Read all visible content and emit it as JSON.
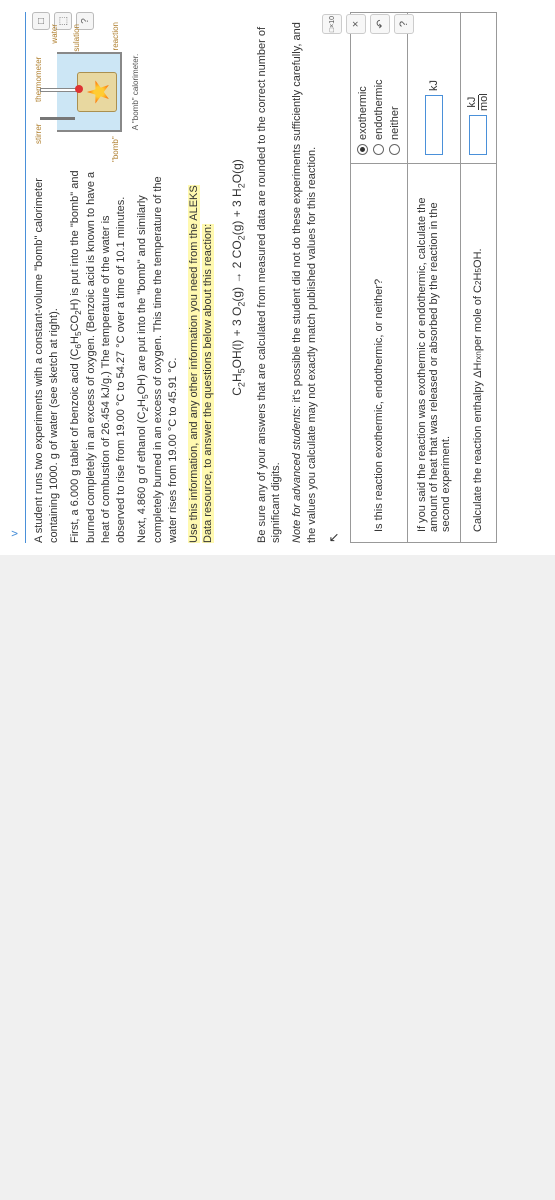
{
  "tab": {
    "arrow": "˅"
  },
  "para1_a": "A student runs two experiments with a constant-volume \"bomb\" calorimeter containing 1000. g of water (see sketch at right).",
  "para2_a": "First, a 6.000 g tablet of benzoic acid (C",
  "para2_b": "H",
  "para2_c": "CO",
  "para2_d": "H) is put into the \"bomb\" and burned completely in an excess of oxygen. (Benzoic acid is known to have a heat of combustion of 26.454 kJ/g.) The temperature of the water is observed to rise from 19.00 °C to 54.27 °C over a time of 10.1 minutes.",
  "para3_a": "Next, 4.860 g of ethanol (C",
  "para3_b": "H",
  "para3_c": "OH) are put into the \"bomb\" and similarly completely burned in an excess of oxygen. This time the temperature of the water rises from 19.00 °C to 45.91 °C.",
  "para4": "Use this information, and any other information you need from the ALEKS Data resource, to answer the questions below about this reaction:",
  "eq_a": "C",
  "eq_b": "H",
  "eq_c": "OH(l) + 3 O",
  "eq_d": "(g) → 2 CO",
  "eq_e": "(g) + 3 H",
  "eq_f": "O(g)",
  "para5": "Be sure any of your answers that are calculated from measured data are rounded to the correct number of significant digits.",
  "para6_a": "Note for advanced students:",
  "para6_b": " it's possible the student did not do these experiments sufficiently carefully, and the values you calculate may not exactly match published values for this reaction.",
  "diagram": {
    "stirrer": "stirrer",
    "thermometer": "thermometer",
    "water": "water",
    "insulation": "insulation",
    "bomb": "\"bomb\"",
    "chem": "chemical reaction",
    "caption": "A \"bomb\" calorimeter."
  },
  "icons": {
    "a": "□",
    "b": "⬚",
    "c": "?"
  },
  "q1": {
    "prompt": "Is this reaction exothermic, endothermic, or neither?",
    "opt1": "exothermic",
    "opt2": "endothermic",
    "opt3": "neither"
  },
  "q2": {
    "prompt_a": "If you said the reaction was exothermic or endothermic, calculate the amount of heat that was released or absorbed by the reaction in the second experiment.",
    "unit": "kJ"
  },
  "q3": {
    "prompt_a": "Calculate the reaction enthalpy ΔH",
    "prompt_b": " per mole of C",
    "prompt_c": "H",
    "prompt_d": "OH.",
    "unit_top": "kJ",
    "unit_bot": "mol"
  },
  "tools": {
    "sci": "□×10",
    "x": "×",
    "undo": "↶",
    "help": "?"
  },
  "colors": {
    "link": "#4a90d9",
    "highlight": "#fff9b0",
    "label": "#b08030"
  }
}
